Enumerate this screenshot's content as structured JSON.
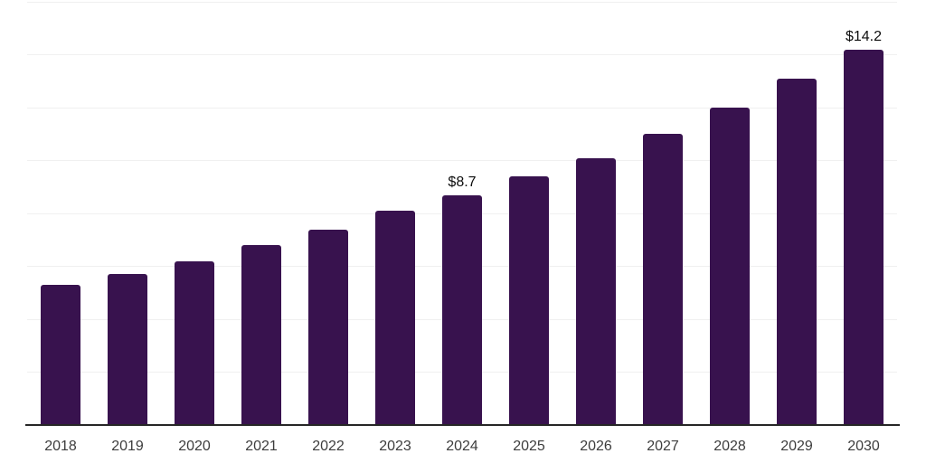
{
  "chart_data": {
    "type": "bar",
    "title": "",
    "xlabel": "",
    "ylabel": "",
    "categories": [
      "2018",
      "2019",
      "2020",
      "2021",
      "2022",
      "2023",
      "2024",
      "2025",
      "2026",
      "2027",
      "2028",
      "2029",
      "2030"
    ],
    "values": [
      5.3,
      5.7,
      6.2,
      6.8,
      7.4,
      8.1,
      8.7,
      9.4,
      10.1,
      11.0,
      12.0,
      13.1,
      14.2
    ],
    "data_labels": {
      "2024": "$8.7",
      "2030": "$14.2"
    },
    "ylim": [
      0,
      16
    ],
    "grid_step": 2,
    "grid": true,
    "legend": false,
    "y_axis_labels_visible": false
  },
  "colors": {
    "bar": "#38124E",
    "gridline": "#F0F0F0",
    "axis": "#262626",
    "tick_label": "#3D3D3D",
    "data_label": "#0D0D0D",
    "background": "#FFFFFF"
  }
}
